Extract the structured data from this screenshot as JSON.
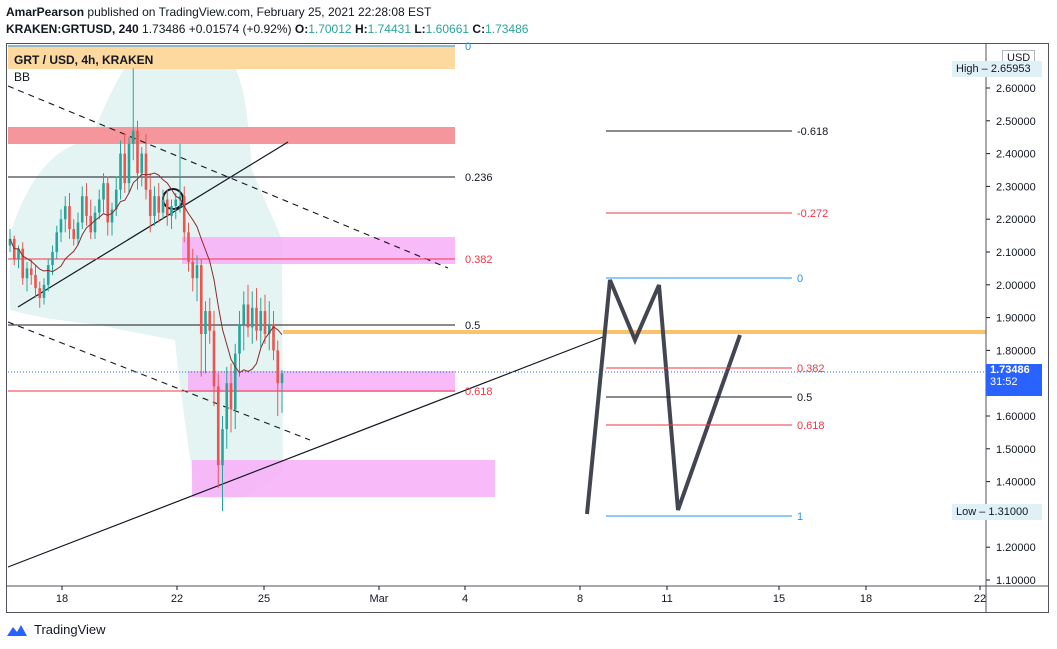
{
  "header": {
    "author": "AmarPearson",
    "published_text": "published on TradingView.com, February 25, 2021 22:28:08 EST",
    "symbol": "KRAKEN:GRTUSD, 240",
    "last": "1.73486",
    "change": "+0.01574 (+0.92%)",
    "o_label": "O:",
    "o": "1.70012",
    "h_label": "H:",
    "h": "1.74431",
    "l_label": "L:",
    "l": "1.60661",
    "c_label": "C:",
    "c": "1.73486"
  },
  "chart_data": {
    "type": "candlestick",
    "title": "GRT / USD, 4h, KRAKEN",
    "indicator": "BB",
    "currency": "USD",
    "y_ticks": [
      "2.60000",
      "2.50000",
      "2.40000",
      "2.30000",
      "2.20000",
      "2.10000",
      "2.00000",
      "1.90000",
      "1.80000",
      "1.70000",
      "1.60000",
      "1.50000",
      "1.40000",
      "1.30000",
      "1.20000",
      "1.10000"
    ],
    "x_ticks": [
      "18",
      "22",
      "25",
      "Mar",
      "4",
      "8",
      "11",
      "15",
      "18",
      "22"
    ],
    "high_label": "High",
    "high_value": "2.65953",
    "low_label": "Low",
    "low_value": "1.31000",
    "last_price": "1.73486",
    "countdown": "31:52",
    "fib_left": [
      {
        "level": "0",
        "color": "#2196f3"
      },
      {
        "level": "0.236",
        "color": "#131722"
      },
      {
        "level": "0.382",
        "color": "#f23645"
      },
      {
        "level": "0.5",
        "color": "#131722"
      },
      {
        "level": "0.618",
        "color": "#f23645"
      }
    ],
    "fib_right": [
      {
        "level": "-0.618",
        "color": "#131722"
      },
      {
        "level": "-0.272",
        "color": "#f23645"
      },
      {
        "level": "0",
        "color": "#2196f3"
      },
      {
        "level": "0.382",
        "color": "#f23645"
      },
      {
        "level": "0.5",
        "color": "#131722"
      },
      {
        "level": "0.618",
        "color": "#f23645"
      },
      {
        "level": "1",
        "color": "#2196f3"
      }
    ],
    "candles": [
      [
        2.12,
        2.17,
        2.1,
        2.14
      ],
      [
        2.14,
        2.15,
        2.06,
        2.08
      ],
      [
        2.08,
        2.12,
        2.05,
        2.11
      ],
      [
        2.11,
        2.13,
        2.0,
        2.02
      ],
      [
        2.02,
        2.07,
        1.98,
        2.05
      ],
      [
        2.05,
        2.08,
        2.0,
        2.03
      ],
      [
        2.03,
        2.06,
        1.96,
        1.99
      ],
      [
        1.99,
        2.01,
        1.93,
        1.96
      ],
      [
        1.96,
        2.02,
        1.94,
        2.0
      ],
      [
        2.0,
        2.08,
        1.98,
        2.06
      ],
      [
        2.06,
        2.12,
        2.03,
        2.1
      ],
      [
        2.1,
        2.18,
        2.08,
        2.16
      ],
      [
        2.16,
        2.23,
        2.13,
        2.2
      ],
      [
        2.2,
        2.27,
        2.16,
        2.24
      ],
      [
        2.24,
        2.28,
        2.14,
        2.17
      ],
      [
        2.17,
        2.2,
        2.12,
        2.14
      ],
      [
        2.14,
        2.22,
        2.12,
        2.19
      ],
      [
        2.19,
        2.3,
        2.17,
        2.27
      ],
      [
        2.27,
        2.31,
        2.18,
        2.21
      ],
      [
        2.21,
        2.26,
        2.14,
        2.16
      ],
      [
        2.16,
        2.24,
        2.14,
        2.22
      ],
      [
        2.22,
        2.29,
        2.2,
        2.26
      ],
      [
        2.26,
        2.34,
        2.22,
        2.31
      ],
      [
        2.31,
        2.33,
        2.15,
        2.19
      ],
      [
        2.19,
        2.25,
        2.15,
        2.23
      ],
      [
        2.23,
        2.33,
        2.21,
        2.29
      ],
      [
        2.29,
        2.44,
        2.26,
        2.4
      ],
      [
        2.4,
        2.46,
        2.28,
        2.31
      ],
      [
        2.31,
        2.45,
        2.28,
        2.43
      ],
      [
        2.43,
        2.66,
        2.38,
        2.47
      ],
      [
        2.47,
        2.5,
        2.29,
        2.34
      ],
      [
        2.34,
        2.42,
        2.3,
        2.4
      ],
      [
        2.4,
        2.46,
        2.26,
        2.29
      ],
      [
        2.29,
        2.34,
        2.16,
        2.21
      ],
      [
        2.21,
        2.3,
        2.18,
        2.27
      ],
      [
        2.27,
        2.31,
        2.19,
        2.22
      ],
      [
        2.22,
        2.29,
        2.2,
        2.26
      ],
      [
        2.26,
        2.29,
        2.18,
        2.21
      ],
      [
        2.21,
        2.26,
        2.17,
        2.24
      ],
      [
        2.24,
        2.28,
        2.2,
        2.26
      ],
      [
        2.26,
        2.43,
        2.22,
        2.27
      ],
      [
        2.27,
        2.3,
        2.13,
        2.16
      ],
      [
        2.16,
        2.19,
        2.04,
        2.07
      ],
      [
        2.07,
        2.11,
        1.98,
        2.02
      ],
      [
        2.02,
        2.09,
        1.95,
        2.06
      ],
      [
        2.06,
        2.08,
        1.72,
        1.85
      ],
      [
        1.85,
        1.95,
        1.73,
        1.92
      ],
      [
        1.92,
        1.96,
        1.82,
        1.86
      ],
      [
        1.86,
        1.92,
        1.63,
        1.69
      ],
      [
        1.69,
        1.73,
        1.38,
        1.45
      ],
      [
        1.45,
        1.6,
        1.31,
        1.56
      ],
      [
        1.56,
        1.75,
        1.5,
        1.7
      ],
      [
        1.7,
        1.76,
        1.55,
        1.62
      ],
      [
        1.62,
        1.82,
        1.56,
        1.79
      ],
      [
        1.79,
        1.92,
        1.72,
        1.88
      ],
      [
        1.88,
        1.98,
        1.8,
        1.94
      ],
      [
        1.94,
        2.0,
        1.84,
        1.87
      ],
      [
        1.87,
        1.98,
        1.82,
        1.93
      ],
      [
        1.93,
        1.99,
        1.83,
        1.86
      ],
      [
        1.86,
        1.96,
        1.81,
        1.92
      ],
      [
        1.92,
        1.97,
        1.82,
        1.85
      ],
      [
        1.85,
        1.95,
        1.8,
        1.88
      ],
      [
        1.88,
        1.92,
        1.77,
        1.8
      ],
      [
        1.8,
        1.83,
        1.6,
        1.7
      ],
      [
        1.7,
        1.74,
        1.61,
        1.73
      ]
    ]
  },
  "footer": {
    "brand": "TradingView",
    "logo_icon": "tradingview-logo-icon"
  }
}
